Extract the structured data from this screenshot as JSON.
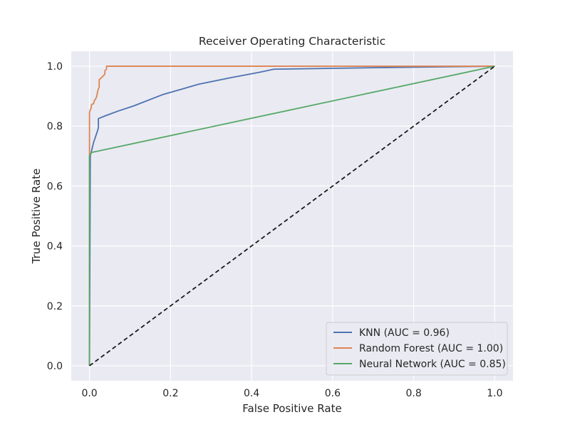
{
  "chart_data": {
    "type": "line",
    "title": "Receiver Operating Characteristic",
    "xlabel": "False Positive Rate",
    "ylabel": "True Positive Rate",
    "xlim": [
      -0.045,
      1.045
    ],
    "ylim": [
      -0.05,
      1.05
    ],
    "xticks": [
      0.0,
      0.2,
      0.4,
      0.6,
      0.8,
      1.0
    ],
    "yticks": [
      0.0,
      0.2,
      0.4,
      0.6,
      0.8,
      1.0
    ],
    "xtick_labels": [
      "0.0",
      "0.2",
      "0.4",
      "0.6",
      "0.8",
      "1.0"
    ],
    "ytick_labels": [
      "0.0",
      "0.2",
      "0.4",
      "0.6",
      "0.8",
      "1.0"
    ],
    "grid": true,
    "legend_position": "lower-right",
    "background_color": "#eaeaf2",
    "grid_color": "#ffffff",
    "series": [
      {
        "name": "KNN (AUC = 0.96)",
        "color": "#4c72b0",
        "points": [
          [
            0,
            0
          ],
          [
            0.002,
            0.7
          ],
          [
            0.01,
            0.745
          ],
          [
            0.02,
            0.785
          ],
          [
            0.022,
            0.795
          ],
          [
            0.022,
            0.825
          ],
          [
            0.04,
            0.835
          ],
          [
            0.07,
            0.85
          ],
          [
            0.11,
            0.868
          ],
          [
            0.18,
            0.905
          ],
          [
            0.27,
            0.94
          ],
          [
            0.35,
            0.962
          ],
          [
            0.42,
            0.98
          ],
          [
            0.455,
            0.99
          ],
          [
            0.6,
            0.993
          ],
          [
            0.8,
            0.997
          ],
          [
            1.0,
            1.0
          ]
        ]
      },
      {
        "name": "Random Forest (AUC = 1.00)",
        "color": "#dd8452",
        "points": [
          [
            0,
            0
          ],
          [
            0,
            0.845
          ],
          [
            0.002,
            0.855
          ],
          [
            0.004,
            0.86
          ],
          [
            0.005,
            0.872
          ],
          [
            0.01,
            0.875
          ],
          [
            0.012,
            0.885
          ],
          [
            0.016,
            0.893
          ],
          [
            0.018,
            0.9
          ],
          [
            0.02,
            0.915
          ],
          [
            0.022,
            0.925
          ],
          [
            0.024,
            0.93
          ],
          [
            0.024,
            0.955
          ],
          [
            0.03,
            0.962
          ],
          [
            0.034,
            0.968
          ],
          [
            0.036,
            0.97
          ],
          [
            0.038,
            0.975
          ],
          [
            0.038,
            0.985
          ],
          [
            0.042,
            0.99
          ],
          [
            0.042,
            1.0
          ],
          [
            0.1,
            1.0
          ],
          [
            0.5,
            1.0
          ],
          [
            1.0,
            1.0
          ]
        ]
      },
      {
        "name": "Neural Network (AUC = 0.85)",
        "color": "#55a868",
        "points": [
          [
            0,
            0
          ],
          [
            0,
            0.7
          ],
          [
            0.005,
            0.712
          ],
          [
            1.0,
            1.0
          ]
        ]
      }
    ],
    "reference_line": {
      "points": [
        [
          0,
          0
        ],
        [
          1,
          1
        ]
      ],
      "color": "#1a1a1a",
      "dashed": true
    }
  }
}
